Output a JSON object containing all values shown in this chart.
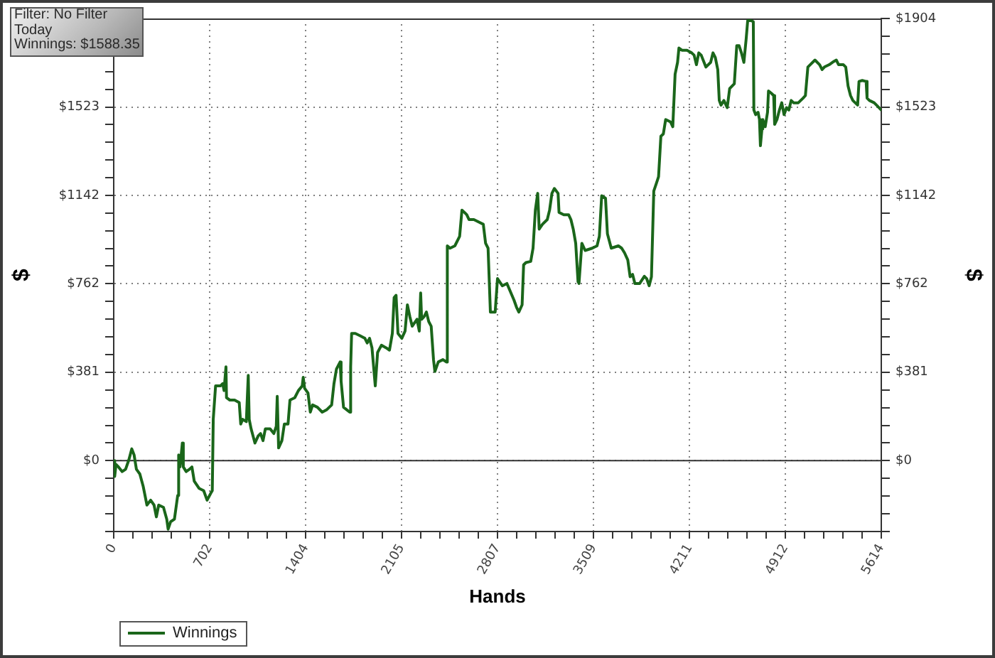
{
  "chart_data": {
    "type": "line",
    "xlabel": "Hands",
    "ylabel": "$",
    "y2label": "$",
    "annotations": [
      "Filter: No Filter",
      "Today",
      "Winnings: $1588.35"
    ],
    "x": [
      0,
      7,
      17,
      35,
      62,
      87,
      111,
      132,
      149,
      166,
      191,
      215,
      243,
      270,
      295,
      312,
      329,
      364,
      388,
      398,
      416,
      444,
      468,
      475,
      485,
      502,
      509,
      530,
      554,
      572,
      589,
      624,
      658,
      683,
      710,
      721,
      728,
      745,
      780,
      797,
      807,
      821,
      825,
      849,
      884,
      918,
      929,
      943,
      970,
      984,
      991,
      1005,
      1033,
      1057,
      1074,
      1092,
      1109,
      1144,
      1171,
      1189,
      1196,
      1206,
      1230,
      1248,
      1275,
      1289,
      1324,
      1351,
      1379,
      1386,
      1396,
      1421,
      1438,
      1455,
      1490,
      1525,
      1559,
      1594,
      1611,
      1629,
      1656,
      1663,
      1681,
      1726,
      1733,
      1740,
      1767,
      1802,
      1837,
      1854,
      1871,
      1889,
      1913,
      1930,
      1958,
      1992,
      2017,
      2038,
      2051,
      2065,
      2079,
      2107,
      2131,
      2148,
      2166,
      2183,
      2218,
      2235,
      2245,
      2252,
      2270,
      2287,
      2304,
      2322,
      2339,
      2349,
      2374,
      2408,
      2433,
      2440,
      2460,
      2495,
      2530,
      2547,
      2565,
      2582,
      2599,
      2634,
      2668,
      2703,
      2720,
      2738,
      2755,
      2790,
      2807,
      2842,
      2876,
      2928,
      2946,
      2963,
      2987,
      2998,
      3015,
      3050,
      3067,
      3084,
      3101,
      3112,
      3136,
      3171,
      3188,
      3205,
      3223,
      3250,
      3257,
      3292,
      3327,
      3344,
      3361,
      3379,
      3396,
      3403,
      3424,
      3448,
      3500,
      3535,
      3552,
      3569,
      3597,
      3611,
      3639,
      3691,
      3715,
      3736,
      3760,
      3777,
      3795,
      3812,
      3847,
      3881,
      3898,
      3916,
      3933,
      3950,
      3968,
      3985,
      4002,
      4020,
      4037,
      4072,
      4089,
      4106,
      4124,
      4134,
      4158,
      4193,
      4227,
      4245,
      4262,
      4279,
      4297,
      4331,
      4366,
      4383,
      4400,
      4418,
      4429,
      4442,
      4463,
      4487,
      4505,
      4539,
      4557,
      4574,
      4591,
      4609,
      4626,
      4637,
      4661,
      4678,
      4682,
      4695,
      4713,
      4723,
      4730,
      4741,
      4747,
      4765,
      4782,
      4789,
      4810,
      4827,
      4834,
      4851,
      4869,
      4886,
      4903,
      4921,
      4938,
      4955,
      4973,
      5007,
      5042,
      5059,
      5077,
      5094,
      5129,
      5163,
      5181,
      5198,
      5233,
      5267,
      5285,
      5302,
      5337,
      5354,
      5371,
      5389,
      5406,
      5441,
      5451,
      5475,
      5503,
      5510,
      5527,
      5562,
      5579,
      5614
    ],
    "series": [
      {
        "name": "Winnings",
        "color": "#1a661a",
        "values": [
          0,
          -68,
          -16,
          -27,
          -47,
          -37,
          4,
          51,
          25,
          -37,
          -57,
          -109,
          -191,
          -170,
          -191,
          -242,
          -191,
          -201,
          -252,
          -295,
          -263,
          -252,
          -150,
          25,
          -27,
          76,
          -27,
          -47,
          -37,
          -27,
          -88,
          -119,
          -129,
          -170,
          -140,
          -129,
          178,
          322,
          322,
          332,
          302,
          404,
          271,
          261,
          261,
          250,
          158,
          178,
          168,
          367,
          178,
          137,
          76,
          107,
          117,
          86,
          137,
          137,
          117,
          148,
          277,
          55,
          86,
          158,
          158,
          261,
          271,
          302,
          322,
          359,
          312,
          291,
          209,
          240,
          230,
          209,
          220,
          240,
          332,
          394,
          425,
          343,
          230,
          209,
          404,
          548,
          548,
          538,
          527,
          507,
          527,
          486,
          322,
          466,
          497,
          486,
          476,
          548,
          702,
          712,
          548,
          527,
          558,
          671,
          620,
          579,
          609,
          558,
          722,
          609,
          620,
          640,
          599,
          579,
          435,
          384,
          425,
          435,
          425,
          925,
          915,
          925,
          966,
          1079,
          1069,
          1059,
          1038,
          1038,
          1028,
          1018,
          936,
          915,
          640,
          640,
          784,
          753,
          763,
          691,
          661,
          640,
          671,
          843,
          853,
          858,
          915,
          1079,
          1151,
          997,
          1018,
          1038,
          1079,
          1151,
          1172,
          1151,
          1069,
          1059,
          1059,
          1038,
          997,
          936,
          771,
          763,
          936,
          905,
          915,
          925,
          966,
          1141,
          1130,
          977,
          915,
          925,
          915,
          895,
          864,
          792,
          802,
          763,
          763,
          794,
          784,
          753,
          792,
          1161,
          1192,
          1223,
          1397,
          1407,
          1469,
          1459,
          1438,
          1664,
          1715,
          1777,
          1767,
          1767,
          1756,
          1746,
          1705,
          1756,
          1746,
          1695,
          1715,
          1756,
          1736,
          1684,
          1551,
          1531,
          1551,
          1520,
          1602,
          1623,
          1787,
          1787,
          1756,
          1715,
          1818,
          1895,
          1895,
          1890,
          1510,
          1490,
          1500,
          1469,
          1356,
          1428,
          1469,
          1438,
          1500,
          1592,
          1582,
          1572,
          1448,
          1469,
          1510,
          1541,
          1490,
          1520,
          1510,
          1551,
          1541,
          1541,
          1561,
          1572,
          1695,
          1705,
          1725,
          1705,
          1684,
          1695,
          1705,
          1719,
          1725,
          1705,
          1705,
          1695,
          1613,
          1572,
          1551,
          1531,
          1633,
          1637,
          1633,
          1561,
          1551,
          1541,
          1531,
          1510
        ]
      }
    ],
    "xlim": [
      0,
      5614
    ],
    "xticks": [
      0,
      {
        "value": 140,
        "label": null
      },
      {
        "value": 281,
        "label": null
      },
      {
        "value": 421,
        "label": null
      },
      {
        "value": 561,
        "label": null
      },
      702,
      {
        "value": 842,
        "label": null
      },
      {
        "value": 982,
        "label": null
      },
      {
        "value": 1123,
        "label": null
      },
      {
        "value": 1263,
        "label": null
      },
      1404,
      {
        "value": 1544,
        "label": null
      },
      {
        "value": 1684,
        "label": null
      },
      {
        "value": 1824,
        "label": null
      },
      {
        "value": 1965,
        "label": null
      },
      2105,
      {
        "value": 2245,
        "label": null
      },
      {
        "value": 2386,
        "label": null
      },
      {
        "value": 2526,
        "label": null
      },
      {
        "value": 2666,
        "label": null
      },
      2807,
      {
        "value": 2947,
        "label": null
      },
      {
        "value": 3087,
        "label": null
      },
      {
        "value": 3228,
        "label": null
      },
      {
        "value": 3368,
        "label": null
      },
      3509,
      {
        "value": 3649,
        "label": null
      },
      {
        "value": 3789,
        "label": null
      },
      {
        "value": 3930,
        "label": null
      },
      {
        "value": 4070,
        "label": null
      },
      4211,
      {
        "value": 4351,
        "label": null
      },
      {
        "value": 4491,
        "label": null
      },
      {
        "value": 4631,
        "label": null
      },
      {
        "value": 4772,
        "label": null
      },
      4912,
      {
        "value": 5052,
        "label": null
      },
      {
        "value": 5193,
        "label": null
      },
      {
        "value": 5333,
        "label": null
      },
      {
        "value": 5473,
        "label": null
      },
      5614
    ],
    "ylim": [
      -305,
      1904
    ],
    "yticks": [
      {
        "value": -305,
        "label": null
      },
      {
        "value": -228,
        "label": null
      },
      {
        "value": -152,
        "label": null
      },
      {
        "value": -76,
        "label": null
      },
      {
        "value": 0,
        "label": "$0"
      },
      {
        "value": 76,
        "label": null
      },
      {
        "value": 152,
        "label": null
      },
      {
        "value": 228,
        "label": null
      },
      {
        "value": 305,
        "label": null
      },
      {
        "value": 381,
        "label": "$381"
      },
      {
        "value": 457,
        "label": null
      },
      {
        "value": 533,
        "label": null
      },
      {
        "value": 610,
        "label": null
      },
      {
        "value": 686,
        "label": null
      },
      {
        "value": 762,
        "label": "$762"
      },
      {
        "value": 838,
        "label": null
      },
      {
        "value": 914,
        "label": null
      },
      {
        "value": 990,
        "label": null
      },
      {
        "value": 1066,
        "label": null
      },
      {
        "value": 1142,
        "label": "$1142"
      },
      {
        "value": 1218,
        "label": null
      },
      {
        "value": 1294,
        "label": null
      },
      {
        "value": 1371,
        "label": null
      },
      {
        "value": 1447,
        "label": null
      },
      {
        "value": 1523,
        "label": "$1523"
      },
      {
        "value": 1599,
        "label": null
      },
      {
        "value": 1675,
        "label": null
      }
    ],
    "y2lim": [
      -305,
      1904
    ],
    "y2ticks": [
      {
        "value": -305,
        "label": null
      },
      {
        "value": -228,
        "label": null
      },
      {
        "value": -152,
        "label": null
      },
      {
        "value": -76,
        "label": null
      },
      {
        "value": 0,
        "label": "$0"
      },
      {
        "value": 76,
        "label": null
      },
      {
        "value": 152,
        "label": null
      },
      {
        "value": 228,
        "label": null
      },
      {
        "value": 305,
        "label": null
      },
      {
        "value": 381,
        "label": "$381"
      },
      {
        "value": 457,
        "label": null
      },
      {
        "value": 533,
        "label": null
      },
      {
        "value": 610,
        "label": null
      },
      {
        "value": 686,
        "label": null
      },
      {
        "value": 762,
        "label": "$762"
      },
      {
        "value": 838,
        "label": null
      },
      {
        "value": 914,
        "label": null
      },
      {
        "value": 990,
        "label": null
      },
      {
        "value": 1066,
        "label": null
      },
      {
        "value": 1142,
        "label": "$1142"
      },
      {
        "value": 1218,
        "label": null
      },
      {
        "value": 1294,
        "label": null
      },
      {
        "value": 1371,
        "label": null
      },
      {
        "value": 1447,
        "label": null
      },
      {
        "value": 1523,
        "label": "$1523"
      },
      {
        "value": 1599,
        "label": null
      },
      {
        "value": 1675,
        "label": null
      },
      {
        "value": 1752,
        "label": null
      },
      {
        "value": 1828,
        "label": null
      },
      {
        "value": 1904,
        "label": "$1904"
      }
    ],
    "grid": true,
    "legend": "bottom left",
    "marker": "none",
    "ref_lines": [
      {
        "axis": "y",
        "value": 0,
        "color": "#333333"
      }
    ]
  }
}
